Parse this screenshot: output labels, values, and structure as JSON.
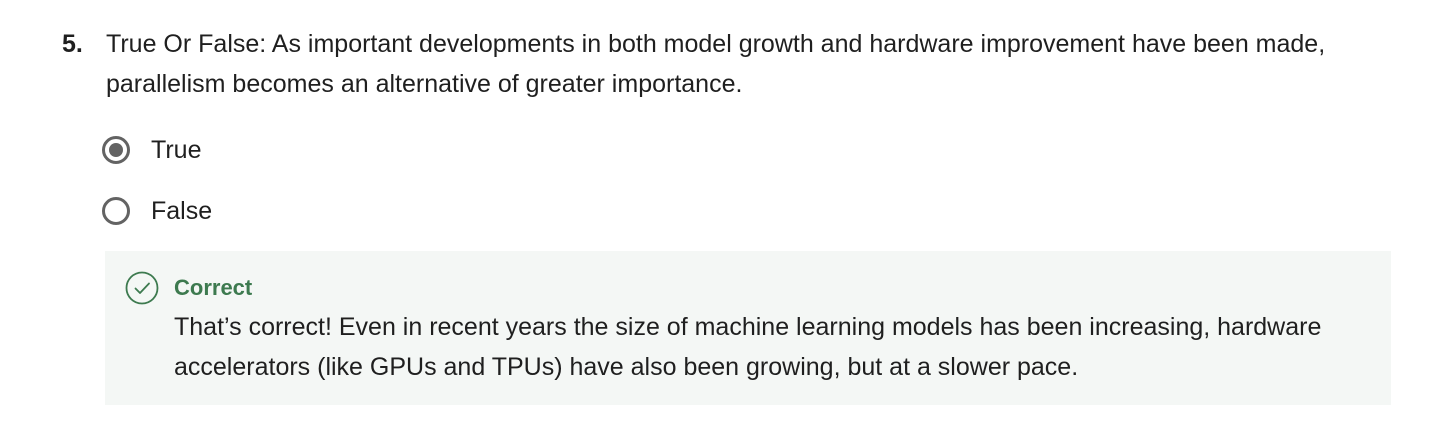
{
  "question": {
    "number": "5.",
    "text": "True Or False: As important developments in both model growth and hardware improvement have been made, parallelism becomes an alternative of greater importance."
  },
  "options": [
    {
      "label": "True",
      "selected": true
    },
    {
      "label": "False",
      "selected": false
    }
  ],
  "feedback": {
    "status": "Correct",
    "icon": "check-circle-icon",
    "message": "That’s correct! Even in recent years the size of machine learning models has been increasing, hardware accelerators (like GPUs and TPUs) have also been growing, but at a slower pace.",
    "accent_color": "#3d7a4f"
  }
}
